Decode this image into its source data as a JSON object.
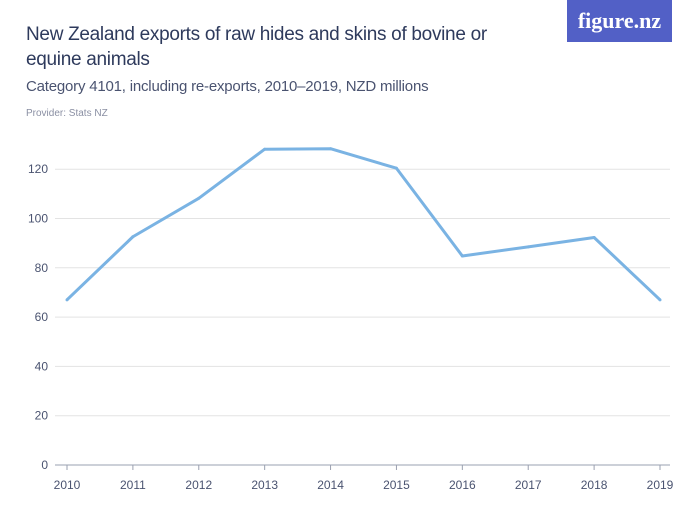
{
  "header": {
    "title": "New Zealand exports of raw hides and skins of bovine or equine animals",
    "subtitle": "Category 4101, including re-exports, 2010–2019, NZD millions",
    "provider": "Provider: Stats NZ",
    "logo_text": "figure.nz"
  },
  "colors": {
    "line": "#7ab3e3",
    "grid": "#e3e3e3",
    "logo_bg": "#5260c6"
  },
  "chart_data": {
    "type": "line",
    "title": "New Zealand exports of raw hides and skins of bovine or equine animals",
    "subtitle": "Category 4101, including re-exports, 2010–2019, NZD millions",
    "x": [
      2010,
      2011,
      2012,
      2013,
      2014,
      2015,
      2016,
      2017,
      2018,
      2019
    ],
    "x_tick_labels": [
      "2010",
      "2011",
      "2012",
      "2013",
      "2014",
      "2015",
      "2016",
      "2017",
      "2018",
      "2019"
    ],
    "y_tick_labels": [
      "0",
      "20",
      "40",
      "60",
      "80",
      "100",
      "120"
    ],
    "series": [
      {
        "values": [
          67,
          92.6,
          108.2,
          128.1,
          128.3,
          120.4,
          84.8,
          88.5,
          92.3,
          67
        ]
      }
    ],
    "ylim": [
      0,
      130
    ],
    "grid": true,
    "legend": "none"
  }
}
